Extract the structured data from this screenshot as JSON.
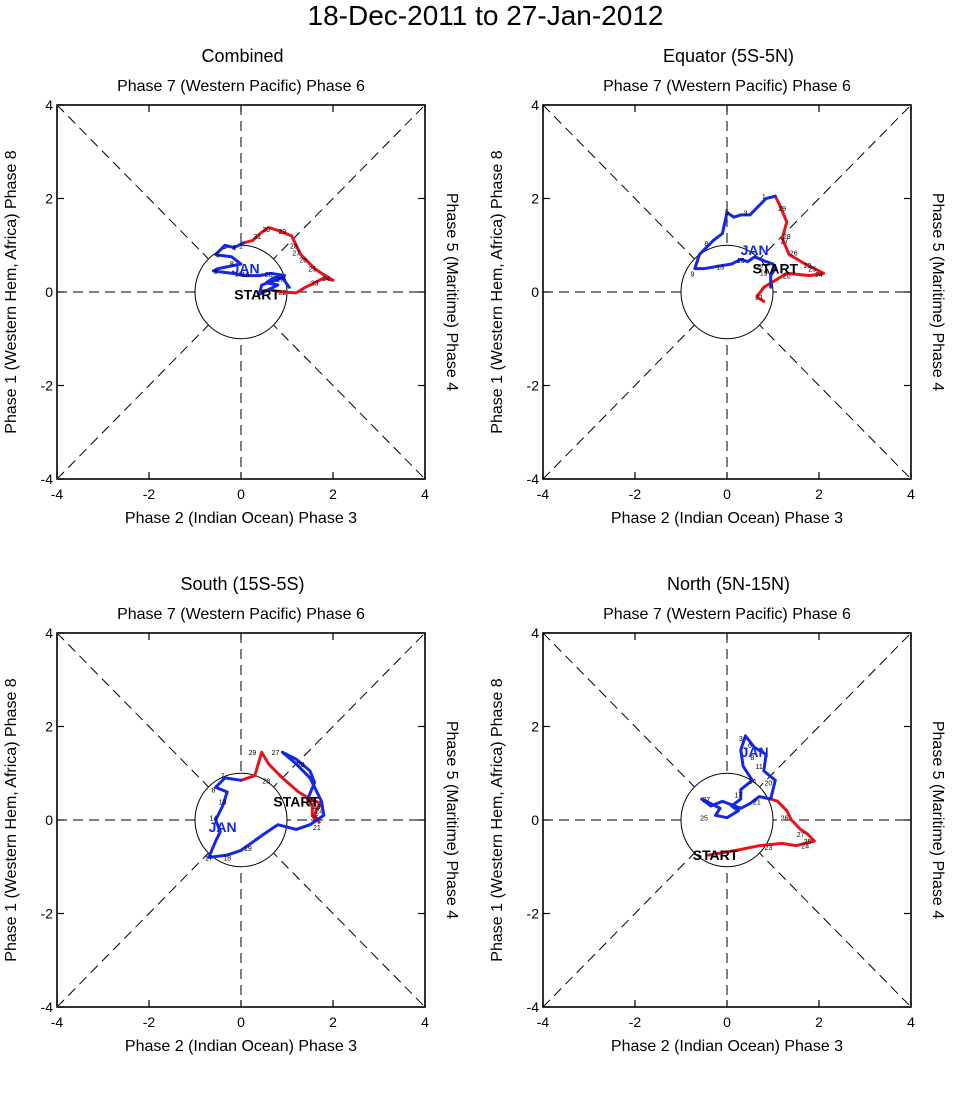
{
  "title": "18-Dec-2011 to 27-Jan-2012",
  "colors": {
    "december": "#e8141c",
    "january": "#1428e6",
    "frame": "#000000"
  },
  "axis_labels": {
    "top": "Phase 7 (Western Pacific) Phase 6",
    "bottom": "Phase 2 (Indian Ocean) Phase 3",
    "left": "Phase 1 (Western Hem, Africa) Phase 8",
    "right": "Phase 5 (Maritime) Phase 4"
  },
  "start_label": "START",
  "jan_label": "JAN",
  "chart_data": [
    {
      "type": "line",
      "title": "Combined",
      "xlim": [
        -4,
        4
      ],
      "ylim": [
        -4,
        4
      ],
      "xticks": [
        "-4",
        "-2",
        "0",
        "2",
        "4"
      ],
      "yticks": [
        "-4",
        "-2",
        "0",
        "2",
        "4"
      ],
      "start": [
        0.35,
        -0.05
      ],
      "jan_label_pos": [
        0.1,
        0.5
      ],
      "series": [
        {
          "name": "December",
          "color_key": "december",
          "points": [
            [
              0.4,
              0.0
            ],
            [
              0.6,
              0.05
            ],
            [
              0.9,
              0.0
            ],
            [
              1.2,
              -0.02
            ],
            [
              1.4,
              0.1
            ],
            [
              1.6,
              0.2
            ],
            [
              1.8,
              0.3
            ],
            [
              2.0,
              0.25
            ],
            [
              1.75,
              0.4
            ],
            [
              1.6,
              0.5
            ],
            [
              1.45,
              0.65
            ],
            [
              1.3,
              0.8
            ],
            [
              1.2,
              1.0
            ],
            [
              1.1,
              1.2
            ],
            [
              0.85,
              1.3
            ],
            [
              0.6,
              1.38
            ],
            [
              0.45,
              1.28
            ],
            [
              0.25,
              1.1
            ],
            [
              0.05,
              1.05
            ]
          ],
          "labels": [
            [
              "22",
              0.9,
              0.0
            ],
            [
              "23",
              1.6,
              0.2
            ],
            [
              "24",
              1.85,
              0.3
            ],
            [
              "25",
              1.55,
              0.5
            ],
            [
              "26",
              1.35,
              0.7
            ],
            [
              "27",
              1.2,
              0.85
            ],
            [
              "28",
              1.15,
              1.0
            ],
            [
              "29",
              0.9,
              1.3
            ],
            [
              "30",
              0.55,
              1.35
            ],
            [
              "31",
              0.35,
              1.2
            ]
          ]
        },
        {
          "name": "January",
          "color_key": "january",
          "points": [
            [
              0.05,
              1.05
            ],
            [
              -0.15,
              0.95
            ],
            [
              -0.35,
              1.0
            ],
            [
              -0.55,
              0.8
            ],
            [
              -0.2,
              0.75
            ],
            [
              0.0,
              0.6
            ],
            [
              -0.5,
              0.5
            ],
            [
              -0.6,
              0.45
            ],
            [
              -0.2,
              0.4
            ],
            [
              0.1,
              0.35
            ],
            [
              0.4,
              0.35
            ],
            [
              0.65,
              0.4
            ],
            [
              0.95,
              0.35
            ],
            [
              0.7,
              0.3
            ],
            [
              0.55,
              0.2
            ],
            [
              0.8,
              0.15
            ],
            [
              0.5,
              0.0
            ],
            [
              0.4,
              -0.05
            ],
            [
              0.45,
              0.15
            ],
            [
              0.9,
              0.3
            ],
            [
              1.05,
              0.1
            ]
          ],
          "labels": [
            [
              "1",
              0.0,
              1.0
            ],
            [
              "4",
              -0.15,
              0.95
            ],
            [
              "5",
              -0.5,
              0.8
            ],
            [
              "8",
              -0.2,
              0.62
            ],
            [
              "9",
              -0.55,
              0.45
            ],
            [
              "13",
              -0.05,
              0.4
            ],
            [
              "16",
              0.1,
              0.38
            ],
            [
              "20",
              0.6,
              0.38
            ],
            [
              "27",
              0.85,
              0.28
            ]
          ]
        }
      ]
    },
    {
      "type": "line",
      "title": "Equator (5S-5N)",
      "xlim": [
        -4,
        4
      ],
      "ylim": [
        -4,
        4
      ],
      "xticks": [
        "-4",
        "-2",
        "0",
        "2",
        "4"
      ],
      "yticks": [
        "-4",
        "-2",
        "0",
        "2",
        "4"
      ],
      "start": [
        1.05,
        0.5
      ],
      "jan_label_pos": [
        0.6,
        0.9
      ],
      "series": [
        {
          "name": "December",
          "color_key": "december",
          "points": [
            [
              0.8,
              -0.2
            ],
            [
              0.65,
              -0.1
            ],
            [
              0.8,
              0.1
            ],
            [
              1.3,
              0.4
            ],
            [
              1.8,
              0.35
            ],
            [
              2.1,
              0.4
            ],
            [
              1.9,
              0.5
            ],
            [
              1.7,
              0.6
            ],
            [
              1.35,
              0.8
            ],
            [
              1.2,
              1.15
            ],
            [
              1.3,
              1.5
            ],
            [
              1.15,
              1.85
            ],
            [
              1.05,
              2.05
            ]
          ],
          "labels": [
            [
              "20",
              1.3,
              0.35
            ],
            [
              "21",
              0.7,
              -0.1
            ],
            [
              "22",
              0.7,
              0.55
            ],
            [
              "23",
              1.75,
              0.58
            ],
            [
              "24",
              2.0,
              0.38
            ],
            [
              "25",
              1.85,
              0.5
            ],
            [
              "26",
              1.45,
              0.85
            ],
            [
              "27",
              1.25,
              1.1
            ],
            [
              "28",
              1.3,
              1.2
            ],
            [
              "29",
              1.2,
              1.8
            ]
          ]
        },
        {
          "name": "January",
          "color_key": "january",
          "points": [
            [
              1.05,
              2.05
            ],
            [
              0.85,
              2.0
            ],
            [
              0.5,
              1.65
            ],
            [
              0.3,
              1.65
            ],
            [
              0.15,
              1.6
            ],
            [
              0.0,
              1.7
            ],
            [
              -0.1,
              1.25
            ],
            [
              -0.3,
              1.1
            ],
            [
              -0.6,
              0.8
            ],
            [
              -0.7,
              0.5
            ],
            [
              -0.5,
              0.5
            ],
            [
              -0.2,
              0.55
            ],
            [
              0.1,
              0.6
            ],
            [
              0.3,
              0.7
            ],
            [
              0.45,
              0.65
            ],
            [
              0.6,
              0.75
            ],
            [
              0.85,
              0.65
            ],
            [
              1.0,
              0.6
            ],
            [
              1.05,
              0.5
            ],
            [
              0.95,
              0.35
            ],
            [
              0.95,
              0.1
            ]
          ],
          "labels": [
            [
              "1",
              0.8,
              2.05
            ],
            [
              "3",
              0.4,
              1.7
            ],
            [
              "5",
              0.0,
              1.72
            ],
            [
              "8",
              -0.45,
              1.05
            ],
            [
              "9",
              -0.75,
              0.4
            ],
            [
              "13",
              -0.15,
              0.55
            ],
            [
              "16",
              0.3,
              0.68
            ],
            [
              "19",
              0.8,
              0.42
            ]
          ]
        }
      ]
    },
    {
      "type": "line",
      "title": "South (15S-5S)",
      "xlim": [
        -4,
        4
      ],
      "ylim": [
        -4,
        4
      ],
      "xticks": [
        "-4",
        "-2",
        "0",
        "2",
        "4"
      ],
      "yticks": [
        "-4",
        "-2",
        "0",
        "2",
        "4"
      ],
      "start": [
        1.2,
        0.4
      ],
      "jan_label_pos": [
        -0.4,
        -0.15
      ],
      "series": [
        {
          "name": "December",
          "color_key": "december",
          "points": [
            [
              0.0,
              0.85
            ],
            [
              0.3,
              0.95
            ],
            [
              0.45,
              1.45
            ],
            [
              0.6,
              1.2
            ],
            [
              0.9,
              0.9
            ],
            [
              1.25,
              0.6
            ],
            [
              1.5,
              0.45
            ],
            [
              1.75,
              0.35
            ],
            [
              1.65,
              0.25
            ],
            [
              1.6,
              0.1
            ],
            [
              1.7,
              -0.05
            ],
            [
              1.55,
              0.1
            ],
            [
              1.55,
              0.3
            ],
            [
              1.45,
              0.45
            ]
          ],
          "labels": [
            [
              "22",
              1.55,
              0.45
            ],
            [
              "23",
              1.65,
              0.3
            ],
            [
              "24",
              1.7,
              0.2
            ],
            [
              "25",
              1.6,
              0.05
            ],
            [
              "26",
              1.5,
              0.4
            ],
            [
              "28",
              0.55,
              0.85
            ],
            [
              "29",
              0.25,
              1.45
            ]
          ]
        },
        {
          "name": "January",
          "color_key": "january",
          "points": [
            [
              1.45,
              0.45
            ],
            [
              1.6,
              0.8
            ],
            [
              1.5,
              1.05
            ],
            [
              1.2,
              1.3
            ],
            [
              0.9,
              1.45
            ],
            [
              1.2,
              1.2
            ],
            [
              1.5,
              0.9
            ],
            [
              1.75,
              0.4
            ],
            [
              1.8,
              0.1
            ],
            [
              1.5,
              -0.1
            ],
            [
              1.2,
              -0.2
            ],
            [
              0.8,
              -0.1
            ],
            [
              0.5,
              -0.3
            ],
            [
              0.0,
              -0.65
            ],
            [
              -0.3,
              -0.75
            ],
            [
              -0.7,
              -0.8
            ],
            [
              -0.55,
              -0.45
            ],
            [
              -0.45,
              -0.25
            ],
            [
              -0.55,
              0.0
            ],
            [
              -0.4,
              0.3
            ],
            [
              -0.3,
              0.6
            ],
            [
              -0.55,
              0.7
            ],
            [
              -0.35,
              0.9
            ],
            [
              0.0,
              0.85
            ]
          ],
          "labels": [
            [
              "27",
              0.75,
              1.45
            ],
            [
              "20",
              1.3,
              1.2
            ],
            [
              "21",
              1.65,
              -0.15
            ],
            [
              "19",
              0.15,
              -0.6
            ],
            [
              "18",
              -0.3,
              -0.8
            ],
            [
              "17",
              -0.7,
              -0.8
            ],
            [
              "14",
              -0.6,
              0.05
            ],
            [
              "13",
              -0.4,
              0.4
            ],
            [
              "8",
              -0.6,
              0.65
            ],
            [
              "7",
              -0.4,
              0.95
            ]
          ]
        }
      ]
    },
    {
      "type": "line",
      "title": "North (5N-15N)",
      "xlim": [
        -4,
        4
      ],
      "ylim": [
        -4,
        4
      ],
      "xticks": [
        "-4",
        "-2",
        "0",
        "2",
        "4"
      ],
      "yticks": [
        "-4",
        "-2",
        "0",
        "2",
        "4"
      ],
      "start": [
        -0.25,
        -0.75
      ],
      "jan_label_pos": [
        0.6,
        1.45
      ],
      "series": [
        {
          "name": "December",
          "color_key": "december",
          "points": [
            [
              -0.4,
              -0.75
            ],
            [
              0.2,
              -0.65
            ],
            [
              0.7,
              -0.55
            ],
            [
              1.2,
              -0.5
            ],
            [
              1.5,
              -0.55
            ],
            [
              1.9,
              -0.45
            ],
            [
              1.75,
              -0.3
            ],
            [
              1.6,
              -0.2
            ],
            [
              1.4,
              0.0
            ],
            [
              1.3,
              0.2
            ],
            [
              1.1,
              0.4
            ],
            [
              0.95,
              0.45
            ]
          ],
          "labels": [
            [
              "23",
              0.9,
              -0.58
            ],
            [
              "24",
              1.7,
              -0.55
            ],
            [
              "25",
              1.75,
              -0.45
            ],
            [
              "26",
              1.25,
              0.05
            ],
            [
              "27",
              1.6,
              -0.3
            ]
          ]
        },
        {
          "name": "January",
          "color_key": "january",
          "points": [
            [
              0.95,
              0.45
            ],
            [
              1.05,
              0.85
            ],
            [
              0.8,
              1.05
            ],
            [
              0.85,
              1.4
            ],
            [
              0.6,
              1.55
            ],
            [
              0.4,
              1.8
            ],
            [
              0.3,
              1.5
            ],
            [
              0.35,
              1.15
            ],
            [
              0.55,
              0.85
            ],
            [
              0.3,
              0.65
            ],
            [
              0.3,
              0.45
            ],
            [
              0.1,
              0.3
            ],
            [
              0.25,
              0.2
            ],
            [
              0.0,
              0.05
            ],
            [
              -0.25,
              0.1
            ],
            [
              -0.15,
              0.25
            ],
            [
              -0.55,
              0.45
            ],
            [
              -0.35,
              0.3
            ],
            [
              -0.1,
              0.4
            ],
            [
              0.3,
              0.25
            ],
            [
              0.5,
              0.35
            ],
            [
              0.7,
              0.5
            ],
            [
              0.95,
              0.45
            ]
          ],
          "labels": [
            [
              "3",
              0.3,
              1.75
            ],
            [
              "6",
              0.5,
              1.6
            ],
            [
              "8",
              0.55,
              1.35
            ],
            [
              "11",
              0.7,
              1.15
            ],
            [
              "14",
              0.55,
              0.85
            ],
            [
              "17",
              0.25,
              0.55
            ],
            [
              "20",
              0.9,
              0.8
            ],
            [
              "21",
              0.65,
              0.4
            ],
            [
              "25",
              -0.5,
              0.05
            ],
            [
              "27",
              -0.45,
              0.45
            ]
          ]
        }
      ]
    }
  ]
}
